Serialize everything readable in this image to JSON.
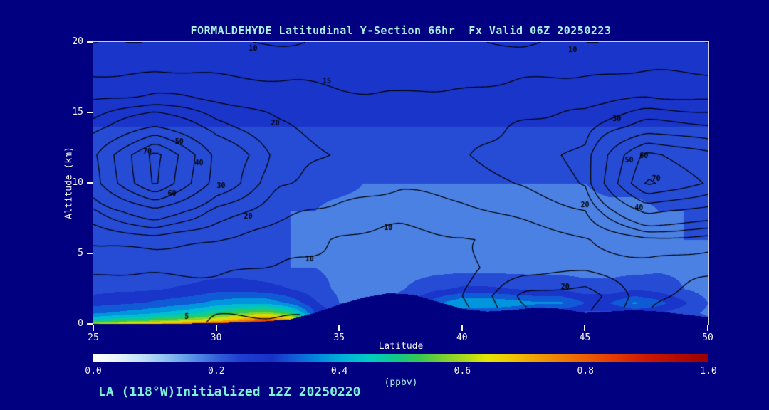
{
  "title": "FORMALDEHYDE Latitudinal Y-Section 66hr  Fx Valid 06Z 20250223",
  "footer": "LA (118°W)Initialized 12Z 20250220",
  "colors": {
    "background": "#000080",
    "title_text": "#a8f2e8",
    "footer_text": "#7df2d8",
    "axis_text": "#f2f2f2",
    "contour_line": "#000000"
  },
  "axes": {
    "x_label": "Latitude",
    "y_label": "Altitude (km)",
    "x_ticks": [
      25,
      30,
      35,
      40,
      45,
      50
    ],
    "y_ticks": [
      0,
      5,
      10,
      15,
      20
    ],
    "x_range": [
      25,
      50
    ],
    "y_range": [
      0,
      20
    ]
  },
  "colorbar": {
    "label": "(ppbv)",
    "ticks": [
      "0.0",
      "0.2",
      "0.4",
      "0.6",
      "0.8",
      "1.0"
    ],
    "stops": [
      [
        0.0,
        "#ffffff"
      ],
      [
        0.04,
        "#e8f4fc"
      ],
      [
        0.08,
        "#c0e0f8"
      ],
      [
        0.12,
        "#8cc0f0"
      ],
      [
        0.16,
        "#5a94e8"
      ],
      [
        0.2,
        "#3462dc"
      ],
      [
        0.24,
        "#1e3ed0"
      ],
      [
        0.29,
        "#1832c8"
      ],
      [
        0.33,
        "#1060d8"
      ],
      [
        0.37,
        "#0090dc"
      ],
      [
        0.41,
        "#00b4d8"
      ],
      [
        0.45,
        "#00ccc0"
      ],
      [
        0.49,
        "#10c88c"
      ],
      [
        0.53,
        "#38c850"
      ],
      [
        0.57,
        "#7cd030"
      ],
      [
        0.61,
        "#b4dc18"
      ],
      [
        0.64,
        "#e6e600"
      ],
      [
        0.68,
        "#f0c800"
      ],
      [
        0.72,
        "#f0a000"
      ],
      [
        0.78,
        "#ee7000"
      ],
      [
        0.84,
        "#e64000"
      ],
      [
        0.9,
        "#cc1800"
      ],
      [
        1.0,
        "#990000"
      ]
    ]
  },
  "chart_data": {
    "type": "heatmap",
    "title": "FORMALDEHYDE Latitudinal Y-Section 66hr  Fx Valid 06Z 20250223",
    "x_name": "latitude_deg",
    "y_name": "altitude_km",
    "units": "ppbv",
    "fill_band_width": 0.05,
    "fill": {
      "lat": [
        25,
        26,
        27,
        28,
        29,
        30,
        31,
        32,
        33,
        34,
        35,
        36,
        37,
        38,
        39,
        40,
        41,
        42,
        43,
        44,
        45,
        46,
        47,
        48,
        49,
        50
      ],
      "alt": [
        0,
        0.3,
        0.8,
        1.5,
        2.5,
        4,
        6,
        8,
        10,
        12,
        14,
        17,
        20
      ],
      "values": [
        [
          0.62,
          0.66,
          0.7,
          0.74,
          0.78,
          0.84,
          0.91,
          0.98,
          0.93,
          0.46,
          0.26,
          0.22,
          0.22,
          0.3,
          0.42,
          0.46,
          0.45,
          0.43,
          0.39,
          0.37,
          0.31,
          0.31,
          0.35,
          0.34,
          0.29,
          0.23
        ],
        [
          0.45,
          0.48,
          0.51,
          0.55,
          0.59,
          0.65,
          0.73,
          0.81,
          0.72,
          0.38,
          0.24,
          0.21,
          0.21,
          0.27,
          0.36,
          0.4,
          0.39,
          0.37,
          0.34,
          0.32,
          0.28,
          0.28,
          0.31,
          0.3,
          0.26,
          0.21
        ],
        [
          0.34,
          0.36,
          0.38,
          0.41,
          0.44,
          0.49,
          0.54,
          0.58,
          0.5,
          0.3,
          0.22,
          0.2,
          0.2,
          0.23,
          0.28,
          0.31,
          0.3,
          0.29,
          0.27,
          0.26,
          0.24,
          0.24,
          0.26,
          0.25,
          0.22,
          0.19
        ],
        [
          0.28,
          0.29,
          0.3,
          0.32,
          0.34,
          0.37,
          0.39,
          0.39,
          0.34,
          0.26,
          0.2,
          0.19,
          0.2,
          0.26,
          0.34,
          0.4,
          0.4,
          0.38,
          0.36,
          0.36,
          0.3,
          0.3,
          0.36,
          0.32,
          0.26,
          0.2
        ],
        [
          0.23,
          0.24,
          0.24,
          0.25,
          0.26,
          0.28,
          0.28,
          0.27,
          0.25,
          0.22,
          0.19,
          0.18,
          0.18,
          0.21,
          0.24,
          0.26,
          0.26,
          0.25,
          0.24,
          0.24,
          0.22,
          0.22,
          0.24,
          0.23,
          0.2,
          0.18
        ],
        [
          0.22,
          0.22,
          0.22,
          0.22,
          0.22,
          0.22,
          0.22,
          0.21,
          0.2,
          0.2,
          0.19,
          0.18,
          0.18,
          0.18,
          0.18,
          0.18,
          0.18,
          0.18,
          0.18,
          0.18,
          0.18,
          0.18,
          0.18,
          0.19,
          0.19,
          0.19
        ],
        [
          0.21,
          0.21,
          0.21,
          0.21,
          0.21,
          0.21,
          0.21,
          0.21,
          0.2,
          0.19,
          0.19,
          0.18,
          0.18,
          0.18,
          0.18,
          0.18,
          0.18,
          0.18,
          0.18,
          0.18,
          0.18,
          0.18,
          0.18,
          0.19,
          0.2,
          0.2
        ],
        [
          0.21,
          0.21,
          0.21,
          0.21,
          0.21,
          0.21,
          0.21,
          0.21,
          0.2,
          0.2,
          0.19,
          0.19,
          0.19,
          0.18,
          0.18,
          0.18,
          0.18,
          0.18,
          0.18,
          0.18,
          0.19,
          0.19,
          0.19,
          0.2,
          0.2,
          0.21
        ],
        [
          0.22,
          0.22,
          0.22,
          0.22,
          0.22,
          0.22,
          0.22,
          0.22,
          0.21,
          0.21,
          0.21,
          0.2,
          0.2,
          0.2,
          0.2,
          0.2,
          0.2,
          0.2,
          0.2,
          0.2,
          0.2,
          0.21,
          0.21,
          0.21,
          0.22,
          0.22
        ],
        [
          0.24,
          0.24,
          0.24,
          0.24,
          0.24,
          0.24,
          0.24,
          0.24,
          0.24,
          0.24,
          0.23,
          0.23,
          0.23,
          0.23,
          0.23,
          0.23,
          0.23,
          0.23,
          0.23,
          0.23,
          0.23,
          0.23,
          0.24,
          0.24,
          0.24,
          0.24
        ],
        [
          0.25,
          0.25,
          0.25,
          0.25,
          0.25,
          0.25,
          0.25,
          0.25,
          0.25,
          0.25,
          0.25,
          0.25,
          0.25,
          0.25,
          0.25,
          0.25,
          0.25,
          0.25,
          0.25,
          0.25,
          0.25,
          0.25,
          0.25,
          0.25,
          0.25,
          0.25
        ],
        [
          0.26,
          0.26,
          0.26,
          0.26,
          0.26,
          0.26,
          0.26,
          0.26,
          0.26,
          0.26,
          0.26,
          0.26,
          0.26,
          0.26,
          0.26,
          0.26,
          0.26,
          0.26,
          0.26,
          0.26,
          0.26,
          0.26,
          0.26,
          0.26,
          0.26,
          0.26
        ],
        [
          0.26,
          0.26,
          0.26,
          0.26,
          0.26,
          0.26,
          0.26,
          0.26,
          0.26,
          0.26,
          0.26,
          0.26,
          0.26,
          0.26,
          0.26,
          0.26,
          0.26,
          0.26,
          0.26,
          0.26,
          0.26,
          0.26,
          0.26,
          0.26,
          0.26,
          0.26
        ]
      ]
    },
    "terrain_km": [
      0.02,
      0.02,
      0.02,
      0.03,
      0.05,
      0.08,
      0.12,
      0.2,
      0.35,
      0.8,
      1.4,
      1.9,
      2.2,
      2.1,
      1.6,
      1.1,
      0.9,
      1.0,
      1.2,
      1.1,
      0.8,
      0.9,
      1.0,
      0.9,
      0.7,
      0.5
    ],
    "overlay_contours": {
      "lat": [
        25,
        27.5,
        30,
        32.5,
        35,
        37.5,
        40,
        42.5,
        45,
        47.5,
        50
      ],
      "alt": [
        0,
        2,
        4,
        6,
        8,
        10,
        12,
        14,
        16,
        18,
        20
      ],
      "levels": [
        5,
        10,
        15,
        20,
        25,
        30,
        40,
        50,
        60,
        70
      ],
      "values": [
        [
          7.0,
          7.0,
          4.5,
          4.0,
          4.0,
          4.0,
          7.0,
          17.9,
          20.0,
          8.6,
          4.3
        ],
        [
          7.0,
          7.0,
          7.0,
          7.0,
          7.0,
          7.0,
          10.0,
          20.9,
          23.0,
          11.6,
          7.3
        ],
        [
          11.0,
          11.0,
          11.0,
          9.7,
          8.3,
          7.5,
          9.1,
          12.6,
          14.3,
          12.6,
          11.5
        ],
        [
          15.6,
          17.3,
          14.9,
          12.4,
          9.5,
          8.0,
          9.5,
          12.4,
          14.6,
          18.8,
          17.8
        ],
        [
          23.8,
          36.4,
          23.1,
          16.5,
          13.5,
          12.0,
          13.5,
          16.4,
          19.7,
          41.8,
          35.7
        ],
        [
          36.3,
          71.4,
          35.6,
          20.7,
          17.5,
          16.0,
          17.5,
          20.4,
          25.3,
          72.1,
          58.9
        ],
        [
          38.3,
          73.4,
          37.6,
          22.7,
          19.5,
          18.0,
          19.5,
          22.4,
          26.6,
          63.0,
          52.8
        ],
        [
          27.8,
          40.4,
          27.1,
          20.4,
          17.5,
          16.0,
          17.5,
          20.4,
          22.9,
          33.6,
          30.8
        ],
        [
          19.6,
          21.3,
          19.3,
          17.7,
          16.2,
          15.5,
          16.2,
          17.7,
          18.7,
          20.1,
          19.8
        ],
        [
          13.5,
          14.8,
          14.2,
          13.6,
          12.9,
          12.5,
          12.9,
          13.6,
          14.2,
          14.8,
          14.5
        ],
        [
          9.5,
          10.6,
          10.2,
          9.7,
          10.4,
          10.8,
          10.3,
          9.6,
          10.2,
          10.7,
          9.8
        ]
      ]
    },
    "contour_labels": [
      {
        "text": "70",
        "lat": 27.2,
        "alt": 12.2
      },
      {
        "text": "60",
        "lat": 28.2,
        "alt": 9.2
      },
      {
        "text": "50",
        "lat": 28.5,
        "alt": 12.9
      },
      {
        "text": "40",
        "lat": 29.3,
        "alt": 11.4
      },
      {
        "text": "30",
        "lat": 30.2,
        "alt": 9.8
      },
      {
        "text": "20",
        "lat": 31.3,
        "alt": 7.6
      },
      {
        "text": "10",
        "lat": 33.8,
        "alt": 4.6
      },
      {
        "text": "5",
        "lat": 28.8,
        "alt": 0.5
      },
      {
        "text": "10",
        "lat": 31.5,
        "alt": 19.5
      },
      {
        "text": "10",
        "lat": 44.5,
        "alt": 19.4
      },
      {
        "text": "10",
        "lat": 37.0,
        "alt": 6.8
      },
      {
        "text": "15",
        "lat": 34.5,
        "alt": 17.2
      },
      {
        "text": "20",
        "lat": 32.4,
        "alt": 14.2
      },
      {
        "text": "20",
        "lat": 45.0,
        "alt": 8.4
      },
      {
        "text": "20",
        "lat": 44.2,
        "alt": 2.6
      },
      {
        "text": "30",
        "lat": 46.3,
        "alt": 14.5
      },
      {
        "text": "40",
        "lat": 47.2,
        "alt": 8.2
      },
      {
        "text": "50",
        "lat": 46.8,
        "alt": 11.6
      },
      {
        "text": "60",
        "lat": 47.4,
        "alt": 11.9
      },
      {
        "text": "70",
        "lat": 47.9,
        "alt": 10.3
      }
    ]
  }
}
